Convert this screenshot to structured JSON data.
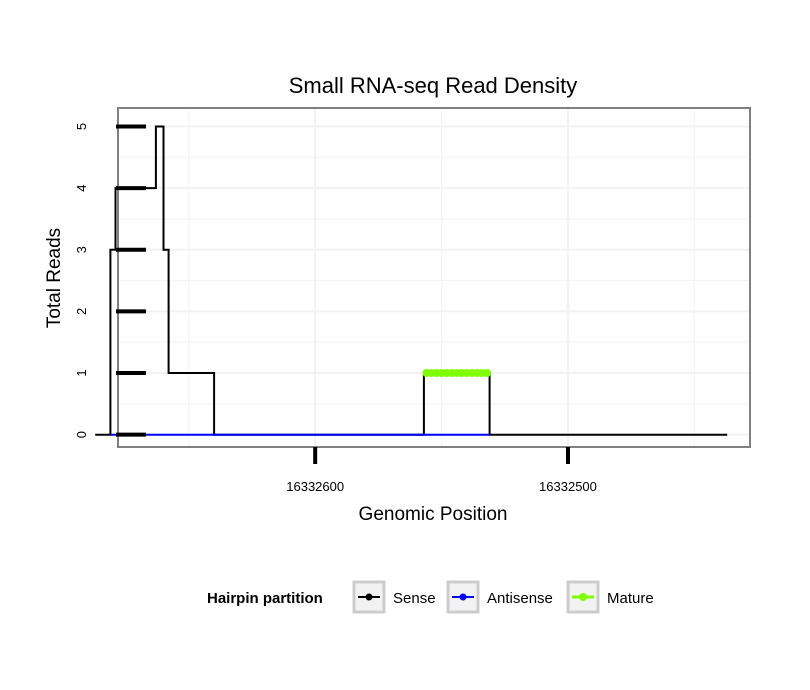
{
  "chart_data": {
    "type": "line",
    "title": "Small RNA-seq Read Density",
    "xlabel": "Genomic Position",
    "ylabel": "Total Reads",
    "x_reversed": true,
    "xlim": [
      16332678,
      16332428
    ],
    "ylim": [
      -0.2,
      5.3
    ],
    "x_ticks": [
      {
        "value": 16332600,
        "label": "16332600"
      },
      {
        "value": 16332500,
        "label": "16332500"
      }
    ],
    "y_ticks": [
      {
        "value": 0,
        "label": "0"
      },
      {
        "value": 1,
        "label": "1"
      },
      {
        "value": 2,
        "label": "2"
      },
      {
        "value": 3,
        "label": "3"
      },
      {
        "value": 4,
        "label": "4"
      },
      {
        "value": 5,
        "label": "5"
      }
    ],
    "grid": true,
    "legend": {
      "title": "Hairpin partition",
      "position": "bottom",
      "entries": [
        "Sense",
        "Antisense",
        "Mature"
      ]
    },
    "series": [
      {
        "name": "Sense",
        "color": "#000000",
        "x": [
          16332687,
          16332681,
          16332681,
          16332679,
          16332679,
          16332663,
          16332663,
          16332660,
          16332660,
          16332658,
          16332658,
          16332640,
          16332640,
          16332557,
          16332557,
          16332531,
          16332531,
          16332437
        ],
        "y": [
          0,
          0,
          3,
          3,
          4,
          4,
          5,
          5,
          3,
          3,
          1,
          1,
          0,
          0,
          1,
          1,
          0,
          0
        ]
      },
      {
        "name": "Antisense",
        "color": "#0000ff",
        "x": [
          16332681,
          16332640,
          16332557,
          16332531
        ],
        "y": [
          0,
          0,
          0,
          0
        ]
      },
      {
        "name": "Mature",
        "color": "#7fff00",
        "x": [
          16332556,
          16332554,
          16332552,
          16332550,
          16332548,
          16332546,
          16332544,
          16332542,
          16332540,
          16332538,
          16332536,
          16332534,
          16332532
        ],
        "y": [
          1,
          1,
          1,
          1,
          1,
          1,
          1,
          1,
          1,
          1,
          1,
          1,
          1
        ]
      }
    ]
  }
}
